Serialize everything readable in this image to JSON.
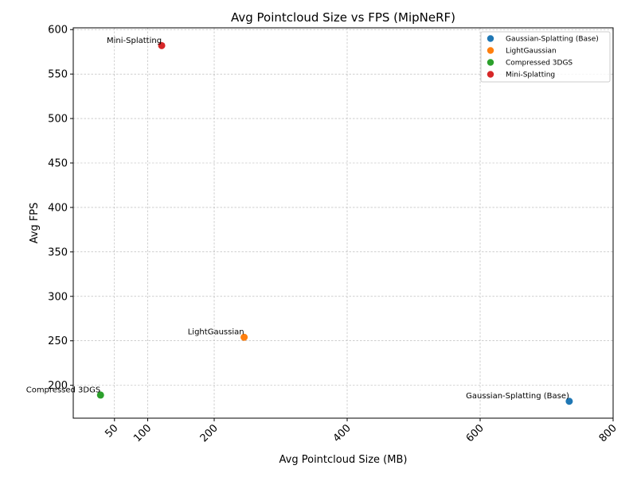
{
  "chart_data": {
    "type": "scatter",
    "title": "Avg Pointcloud Size vs FPS (MipNeRF)",
    "xlabel": "Avg Pointcloud Size (MB)",
    "ylabel": "Avg FPS",
    "xlim": [
      -12,
      800
    ],
    "ylim": [
      163,
      602
    ],
    "x_ticks": [
      50,
      100,
      200,
      400,
      600,
      800
    ],
    "y_ticks": [
      200,
      250,
      300,
      350,
      400,
      450,
      500,
      550,
      600
    ],
    "grid": true,
    "legend_position": "top-right",
    "series": [
      {
        "name": "Gaussian-Splatting (Base)",
        "color": "#1f77b4",
        "x": 734,
        "y": 182
      },
      {
        "name": "LightGaussian",
        "color": "#ff7f0e",
        "x": 245,
        "y": 254
      },
      {
        "name": "Compressed 3DGS",
        "color": "#2ca02c",
        "x": 29,
        "y": 189
      },
      {
        "name": "Mini-Splatting",
        "color": "#d62728",
        "x": 121,
        "y": 582
      }
    ]
  }
}
